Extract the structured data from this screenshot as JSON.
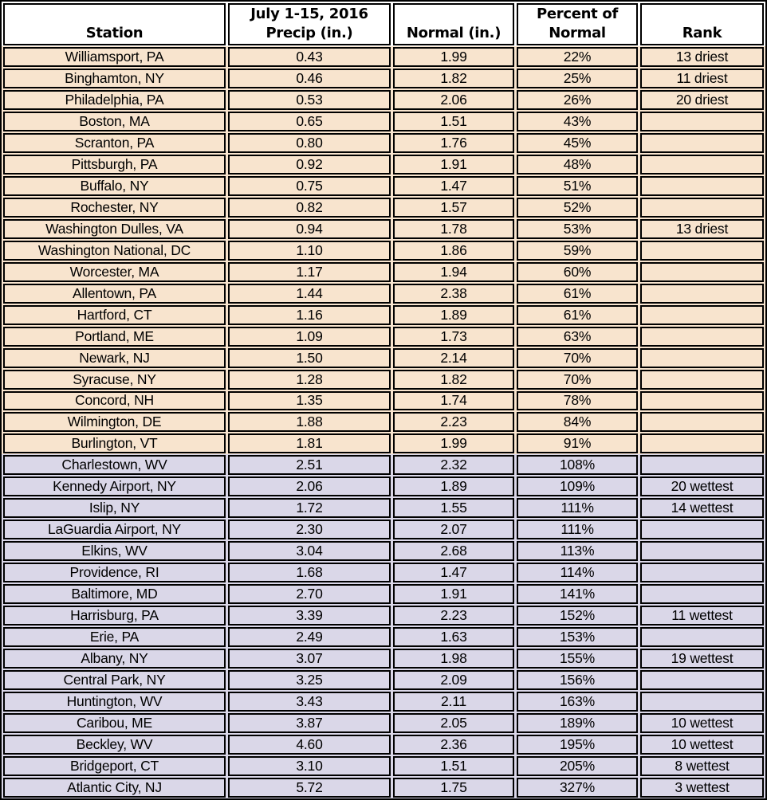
{
  "colors": {
    "dry_row_bg": "#F8E4CE",
    "wet_row_bg": "#DAD7E8",
    "header_bg": "#FFFFFF",
    "border": "#000000",
    "text": "#000000"
  },
  "chart_data": {
    "type": "table",
    "layout_hint": "dry (below-normal) rows shaded peach, wet (above-normal) rows shaded lavender; all cells black-bordered; values centered",
    "columns": [
      {
        "key": "station",
        "header_lines": [
          "Station"
        ]
      },
      {
        "key": "precip",
        "header_lines": [
          "July 1-15, 2016",
          "Precip (in.)"
        ]
      },
      {
        "key": "normal",
        "header_lines": [
          "Normal (in.)"
        ]
      },
      {
        "key": "percent",
        "header_lines": [
          "Percent of",
          "Normal"
        ]
      },
      {
        "key": "rank",
        "header_lines": [
          "Rank"
        ]
      }
    ],
    "rows": [
      {
        "station": "Williamsport, PA",
        "precip": "0.43",
        "normal": "1.99",
        "percent": "22%",
        "rank": "13 driest",
        "group": "dry"
      },
      {
        "station": "Binghamton, NY",
        "precip": "0.46",
        "normal": "1.82",
        "percent": "25%",
        "rank": "11 driest",
        "group": "dry"
      },
      {
        "station": "Philadelphia, PA",
        "precip": "0.53",
        "normal": "2.06",
        "percent": "26%",
        "rank": "20 driest",
        "group": "dry"
      },
      {
        "station": "Boston, MA",
        "precip": "0.65",
        "normal": "1.51",
        "percent": "43%",
        "rank": "",
        "group": "dry"
      },
      {
        "station": "Scranton, PA",
        "precip": "0.80",
        "normal": "1.76",
        "percent": "45%",
        "rank": "",
        "group": "dry"
      },
      {
        "station": "Pittsburgh, PA",
        "precip": "0.92",
        "normal": "1.91",
        "percent": "48%",
        "rank": "",
        "group": "dry"
      },
      {
        "station": "Buffalo, NY",
        "precip": "0.75",
        "normal": "1.47",
        "percent": "51%",
        "rank": "",
        "group": "dry"
      },
      {
        "station": "Rochester, NY",
        "precip": "0.82",
        "normal": "1.57",
        "percent": "52%",
        "rank": "",
        "group": "dry"
      },
      {
        "station": "Washington Dulles, VA",
        "precip": "0.94",
        "normal": "1.78",
        "percent": "53%",
        "rank": "13 driest",
        "group": "dry"
      },
      {
        "station": "Washington National, DC",
        "precip": "1.10",
        "normal": "1.86",
        "percent": "59%",
        "rank": "",
        "group": "dry"
      },
      {
        "station": "Worcester, MA",
        "precip": "1.17",
        "normal": "1.94",
        "percent": "60%",
        "rank": "",
        "group": "dry"
      },
      {
        "station": "Allentown, PA",
        "precip": "1.44",
        "normal": "2.38",
        "percent": "61%",
        "rank": "",
        "group": "dry"
      },
      {
        "station": "Hartford, CT",
        "precip": "1.16",
        "normal": "1.89",
        "percent": "61%",
        "rank": "",
        "group": "dry"
      },
      {
        "station": "Portland, ME",
        "precip": "1.09",
        "normal": "1.73",
        "percent": "63%",
        "rank": "",
        "group": "dry"
      },
      {
        "station": "Newark, NJ",
        "precip": "1.50",
        "normal": "2.14",
        "percent": "70%",
        "rank": "",
        "group": "dry"
      },
      {
        "station": "Syracuse, NY",
        "precip": "1.28",
        "normal": "1.82",
        "percent": "70%",
        "rank": "",
        "group": "dry"
      },
      {
        "station": "Concord, NH",
        "precip": "1.35",
        "normal": "1.74",
        "percent": "78%",
        "rank": "",
        "group": "dry"
      },
      {
        "station": "Wilmington, DE",
        "precip": "1.88",
        "normal": "2.23",
        "percent": "84%",
        "rank": "",
        "group": "dry"
      },
      {
        "station": "Burlington, VT",
        "precip": "1.81",
        "normal": "1.99",
        "percent": "91%",
        "rank": "",
        "group": "dry"
      },
      {
        "station": "Charlestown, WV",
        "precip": "2.51",
        "normal": "2.32",
        "percent": "108%",
        "rank": "",
        "group": "wet"
      },
      {
        "station": "Kennedy Airport, NY",
        "precip": "2.06",
        "normal": "1.89",
        "percent": "109%",
        "rank": "20 wettest",
        "group": "wet"
      },
      {
        "station": "Islip, NY",
        "precip": "1.72",
        "normal": "1.55",
        "percent": "111%",
        "rank": "14 wettest",
        "group": "wet"
      },
      {
        "station": "LaGuardia Airport, NY",
        "precip": "2.30",
        "normal": "2.07",
        "percent": "111%",
        "rank": "",
        "group": "wet"
      },
      {
        "station": "Elkins, WV",
        "precip": "3.04",
        "normal": "2.68",
        "percent": "113%",
        "rank": "",
        "group": "wet"
      },
      {
        "station": "Providence, RI",
        "precip": "1.68",
        "normal": "1.47",
        "percent": "114%",
        "rank": "",
        "group": "wet"
      },
      {
        "station": "Baltimore, MD",
        "precip": "2.70",
        "normal": "1.91",
        "percent": "141%",
        "rank": "",
        "group": "wet"
      },
      {
        "station": "Harrisburg, PA",
        "precip": "3.39",
        "normal": "2.23",
        "percent": "152%",
        "rank": "11 wettest",
        "group": "wet"
      },
      {
        "station": "Erie, PA",
        "precip": "2.49",
        "normal": "1.63",
        "percent": "153%",
        "rank": "",
        "group": "wet"
      },
      {
        "station": "Albany, NY",
        "precip": "3.07",
        "normal": "1.98",
        "percent": "155%",
        "rank": "19 wettest",
        "group": "wet"
      },
      {
        "station": "Central Park, NY",
        "precip": "3.25",
        "normal": "2.09",
        "percent": "156%",
        "rank": "",
        "group": "wet"
      },
      {
        "station": "Huntington, WV",
        "precip": "3.43",
        "normal": "2.11",
        "percent": "163%",
        "rank": "",
        "group": "wet"
      },
      {
        "station": "Caribou, ME",
        "precip": "3.87",
        "normal": "2.05",
        "percent": "189%",
        "rank": "10 wettest",
        "group": "wet"
      },
      {
        "station": "Beckley, WV",
        "precip": "4.60",
        "normal": "2.36",
        "percent": "195%",
        "rank": "10 wettest",
        "group": "wet"
      },
      {
        "station": "Bridgeport, CT",
        "precip": "3.10",
        "normal": "1.51",
        "percent": "205%",
        "rank": "8 wettest",
        "group": "wet"
      },
      {
        "station": "Atlantic City, NJ",
        "precip": "5.72",
        "normal": "1.75",
        "percent": "327%",
        "rank": "3 wettest",
        "group": "wet"
      }
    ]
  }
}
